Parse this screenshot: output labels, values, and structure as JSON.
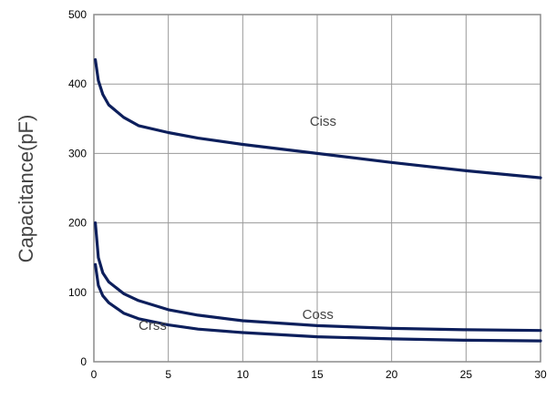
{
  "chart_data": {
    "type": "line",
    "title": "",
    "xlabel": "",
    "ylabel": "Capacitance(pF)",
    "xlim": [
      0,
      30
    ],
    "ylim": [
      0,
      500
    ],
    "x_ticks": [
      0,
      5,
      10,
      15,
      20,
      25,
      30
    ],
    "y_ticks": [
      0,
      100,
      200,
      300,
      400,
      500
    ],
    "grid": true,
    "line_color": "#0d1f5c",
    "series": [
      {
        "name": "Ciss",
        "x": [
          0.1,
          0.3,
          0.6,
          1,
          2,
          3,
          5,
          7,
          10,
          15,
          20,
          25,
          30
        ],
        "y": [
          435,
          405,
          385,
          370,
          352,
          340,
          330,
          322,
          313,
          300,
          287,
          275,
          265
        ]
      },
      {
        "name": "Coss",
        "x": [
          0.1,
          0.3,
          0.6,
          1,
          2,
          3,
          5,
          7,
          10,
          15,
          20,
          25,
          30
        ],
        "y": [
          200,
          150,
          128,
          115,
          98,
          88,
          75,
          67,
          59,
          52,
          48,
          46,
          45
        ]
      },
      {
        "name": "Crss",
        "x": [
          0.1,
          0.3,
          0.6,
          1,
          2,
          3,
          5,
          7,
          10,
          15,
          20,
          25,
          30
        ],
        "y": [
          140,
          110,
          95,
          85,
          70,
          62,
          53,
          47,
          42,
          36,
          33,
          31,
          30
        ]
      }
    ],
    "annotations": [
      {
        "text": "Ciss",
        "x": 14.5,
        "y": 340
      },
      {
        "text": "Coss",
        "x": 14.0,
        "y": 62
      },
      {
        "text": "Crss",
        "x": 3.0,
        "y": 46
      }
    ]
  }
}
